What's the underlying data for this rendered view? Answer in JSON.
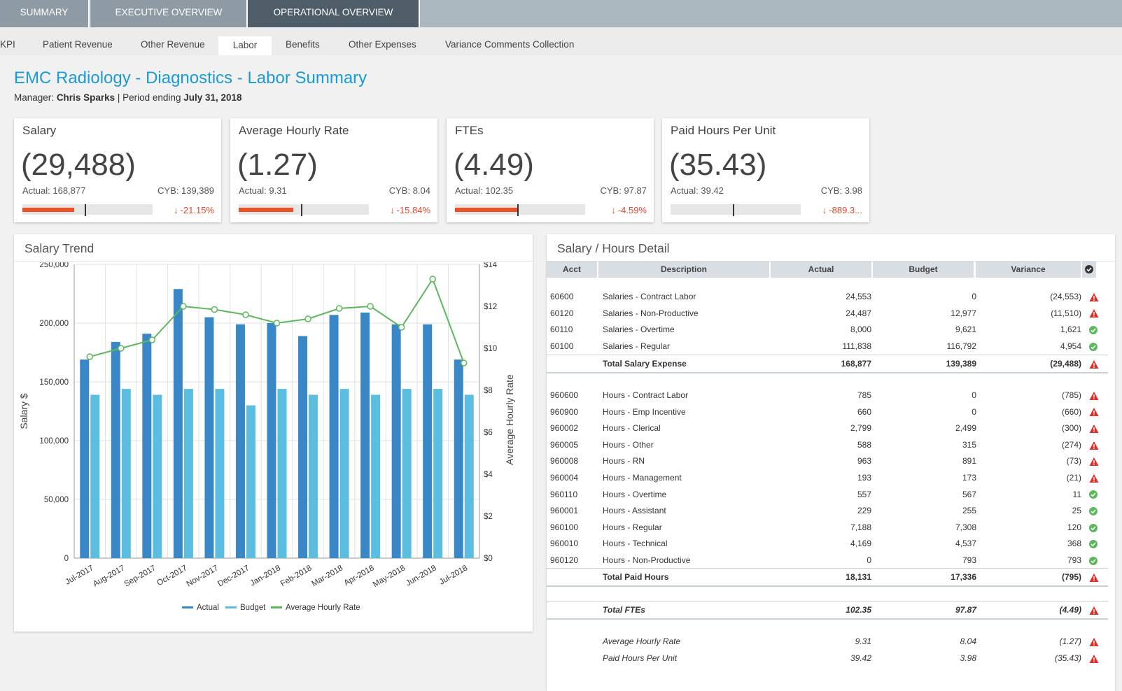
{
  "top_tabs": [
    {
      "label": "SUMMARY"
    },
    {
      "label": "EXECUTIVE OVERVIEW"
    },
    {
      "label": "OPERATIONAL OVERVIEW"
    }
  ],
  "sub_tabs": [
    {
      "label": "KPI"
    },
    {
      "label": "Patient Revenue"
    },
    {
      "label": "Other Revenue"
    },
    {
      "label": "Labor"
    },
    {
      "label": "Benefits"
    },
    {
      "label": "Other Expenses"
    },
    {
      "label": "Variance Comments Collection"
    }
  ],
  "page": {
    "title": "EMC Radiology - Diagnostics - Labor Summary",
    "manager_label": "Manager:",
    "manager_name": "Chris Sparks",
    "period_label": "| Period ending",
    "period_date": "July 31, 2018"
  },
  "cards": [
    {
      "title": "Salary",
      "value": "(29,488)",
      "actual": "Actual: 168,877",
      "cyb": "CYB: 139,389",
      "pct": "-21.15%",
      "fill_pct": 40,
      "marker_pct": 48
    },
    {
      "title": "Average Hourly Rate",
      "value": "(1.27)",
      "actual": "Actual: 9.31",
      "cyb": "CYB: 8.04",
      "pct": "-15.84%",
      "fill_pct": 42,
      "marker_pct": 48
    },
    {
      "title": "FTEs",
      "value": "(4.49)",
      "actual": "Actual: 102.35",
      "cyb": "CYB: 97.87",
      "pct": "-4.59%",
      "fill_pct": 48,
      "marker_pct": 48
    },
    {
      "title": "Paid Hours Per Unit",
      "value": "(35.43)",
      "actual": "Actual: 39.42",
      "cyb": "CYB: 3.98",
      "pct": "-889.3...",
      "fill_pct": 0,
      "marker_pct": 48
    }
  ],
  "salary_trend": {
    "title": "Salary Trend"
  },
  "chart_data": {
    "type": "bar",
    "title": "Salary Trend",
    "categories": [
      "Jul-2017",
      "Aug-2017",
      "Sep-2017",
      "Oct-2017",
      "Nov-2017",
      "Dec-2017",
      "Jan-2018",
      "Feb-2018",
      "Mar-2018",
      "Apr-2018",
      "May-2018",
      "Jun-2018",
      "Jul-2018"
    ],
    "series": [
      {
        "name": "Actual",
        "type": "bar",
        "axis": "left",
        "color": "#3a87c8",
        "values": [
          169000,
          184000,
          191000,
          229000,
          205000,
          199000,
          200000,
          189000,
          207000,
          209000,
          199000,
          199000,
          169000
        ]
      },
      {
        "name": "Budget",
        "type": "bar",
        "axis": "left",
        "color": "#5bbde0",
        "values": [
          139000,
          144000,
          139000,
          144000,
          144000,
          130000,
          144000,
          139000,
          144000,
          139000,
          144000,
          144000,
          139000
        ]
      },
      {
        "name": "Average Hourly Rate",
        "type": "line",
        "axis": "right",
        "color": "#5cb85c",
        "values": [
          9.6,
          10.0,
          10.4,
          12.0,
          11.85,
          11.6,
          11.2,
          11.4,
          11.9,
          12.0,
          11.0,
          13.3,
          9.3
        ]
      }
    ],
    "ylabel": "Salary $",
    "y2label": "Average Hourly Rate",
    "ylim": [
      0,
      250000
    ],
    "y2lim": [
      0,
      14
    ],
    "yticks": [
      "0",
      "50,000",
      "100,000",
      "150,000",
      "200,000",
      "250,000"
    ],
    "y2ticks": [
      "$0",
      "$2",
      "$4",
      "$6",
      "$8",
      "$10",
      "$12",
      "$14"
    ],
    "legend": "bottom",
    "grid": true
  },
  "detail": {
    "title": "Salary / Hours Detail",
    "columns": [
      "Acct",
      "Description",
      "Actual",
      "Budget",
      "Variance"
    ],
    "salary_rows": [
      {
        "acct": "60600",
        "desc": "Salaries - Contract Labor",
        "actual": "24,553",
        "budget": "0",
        "variance": "(24,553)",
        "status": "warn"
      },
      {
        "acct": "60120",
        "desc": "Salaries - Non-Productive",
        "actual": "24,487",
        "budget": "12,977",
        "variance": "(11,510)",
        "status": "warn"
      },
      {
        "acct": "60110",
        "desc": "Salaries - Overtime",
        "actual": "8,000",
        "budget": "9,621",
        "variance": "1,621",
        "status": "ok"
      },
      {
        "acct": "60100",
        "desc": "Salaries - Regular",
        "actual": "111,838",
        "budget": "116,792",
        "variance": "4,954",
        "status": "ok"
      }
    ],
    "salary_total": {
      "desc": "Total Salary Expense",
      "actual": "168,877",
      "budget": "139,389",
      "variance": "(29,488)",
      "status": "warn"
    },
    "hours_rows": [
      {
        "acct": "960600",
        "desc": "Hours - Contract Labor",
        "actual": "785",
        "budget": "0",
        "variance": "(785)",
        "status": "warn"
      },
      {
        "acct": "960900",
        "desc": "Hours - Emp Incentive",
        "actual": "660",
        "budget": "0",
        "variance": "(660)",
        "status": "warn"
      },
      {
        "acct": "960002",
        "desc": "Hours - Clerical",
        "actual": "2,799",
        "budget": "2,499",
        "variance": "(300)",
        "status": "warn"
      },
      {
        "acct": "960005",
        "desc": "Hours - Other",
        "actual": "588",
        "budget": "315",
        "variance": "(274)",
        "status": "warn"
      },
      {
        "acct": "960008",
        "desc": "Hours - RN",
        "actual": "963",
        "budget": "891",
        "variance": "(73)",
        "status": "warn"
      },
      {
        "acct": "960004",
        "desc": "Hours - Management",
        "actual": "193",
        "budget": "173",
        "variance": "(21)",
        "status": "warn"
      },
      {
        "acct": "960110",
        "desc": "Hours - Overtime",
        "actual": "557",
        "budget": "567",
        "variance": "11",
        "status": "ok"
      },
      {
        "acct": "960001",
        "desc": "Hours - Assistant",
        "actual": "229",
        "budget": "255",
        "variance": "25",
        "status": "ok"
      },
      {
        "acct": "960100",
        "desc": "Hours - Regular",
        "actual": "7,188",
        "budget": "7,308",
        "variance": "120",
        "status": "ok"
      },
      {
        "acct": "960010",
        "desc": "Hours - Technical",
        "actual": "4,169",
        "budget": "4,537",
        "variance": "368",
        "status": "ok"
      },
      {
        "acct": "960120",
        "desc": "Hours - Non-Productive",
        "actual": "0",
        "budget": "793",
        "variance": "793",
        "status": "ok"
      }
    ],
    "hours_total": {
      "desc": "Total Paid Hours",
      "actual": "18,131",
      "budget": "17,336",
      "variance": "(795)",
      "status": "warn"
    },
    "fte_total": {
      "desc": "Total FTEs",
      "actual": "102.35",
      "budget": "97.87",
      "variance": "(4.49)",
      "status": "warn"
    },
    "metric_rows": [
      {
        "desc": "Average Hourly Rate",
        "actual": "9.31",
        "budget": "8.04",
        "variance": "(1.27)",
        "status": "warn"
      },
      {
        "desc": "Paid Hours Per Unit",
        "actual": "39.42",
        "budget": "3.98",
        "variance": "(35.43)",
        "status": "warn"
      }
    ]
  },
  "colors": {
    "accent": "#1c9ad6",
    "negative": "#e8452c",
    "positive": "#5cb85c",
    "warning": "#d9302a"
  }
}
